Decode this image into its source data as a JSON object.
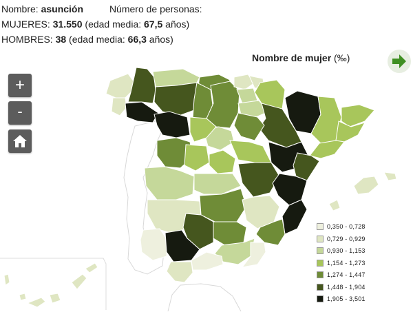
{
  "header": {
    "name_label": "Nombre:",
    "name_value": "asunción",
    "persons_label": "Número de personas:",
    "women_label": "MUJERES:",
    "women_count": "31.550",
    "women_age_pre": "(edad media:",
    "women_age": "67,5",
    "women_age_post": "años)",
    "men_label": "HOMBRES:",
    "men_count": "38",
    "men_age_pre": "(edad media:",
    "men_age": "66,3",
    "men_age_post": "años)"
  },
  "map_title": {
    "text": "Nombre de mujer",
    "unit": "(‰)"
  },
  "controls": {
    "zoom_in": "+",
    "zoom_out": "-"
  },
  "legend": {
    "items": [
      {
        "label": "0,350 - 0,728",
        "color": "#eef0de"
      },
      {
        "label": "0,729 - 0,929",
        "color": "#dfe6c2"
      },
      {
        "label": "0,930 - 1,153",
        "color": "#c5d89a"
      },
      {
        "label": "1,154 - 1,273",
        "color": "#a8c65b"
      },
      {
        "label": "1,274 - 1,447",
        "color": "#6f8c37"
      },
      {
        "label": "1,448 - 1,904",
        "color": "#45561e"
      },
      {
        "label": "1,905 - 3,501",
        "color": "#161a10"
      }
    ]
  },
  "icons": {
    "next": "arrow-right-icon",
    "home": "home-icon"
  }
}
